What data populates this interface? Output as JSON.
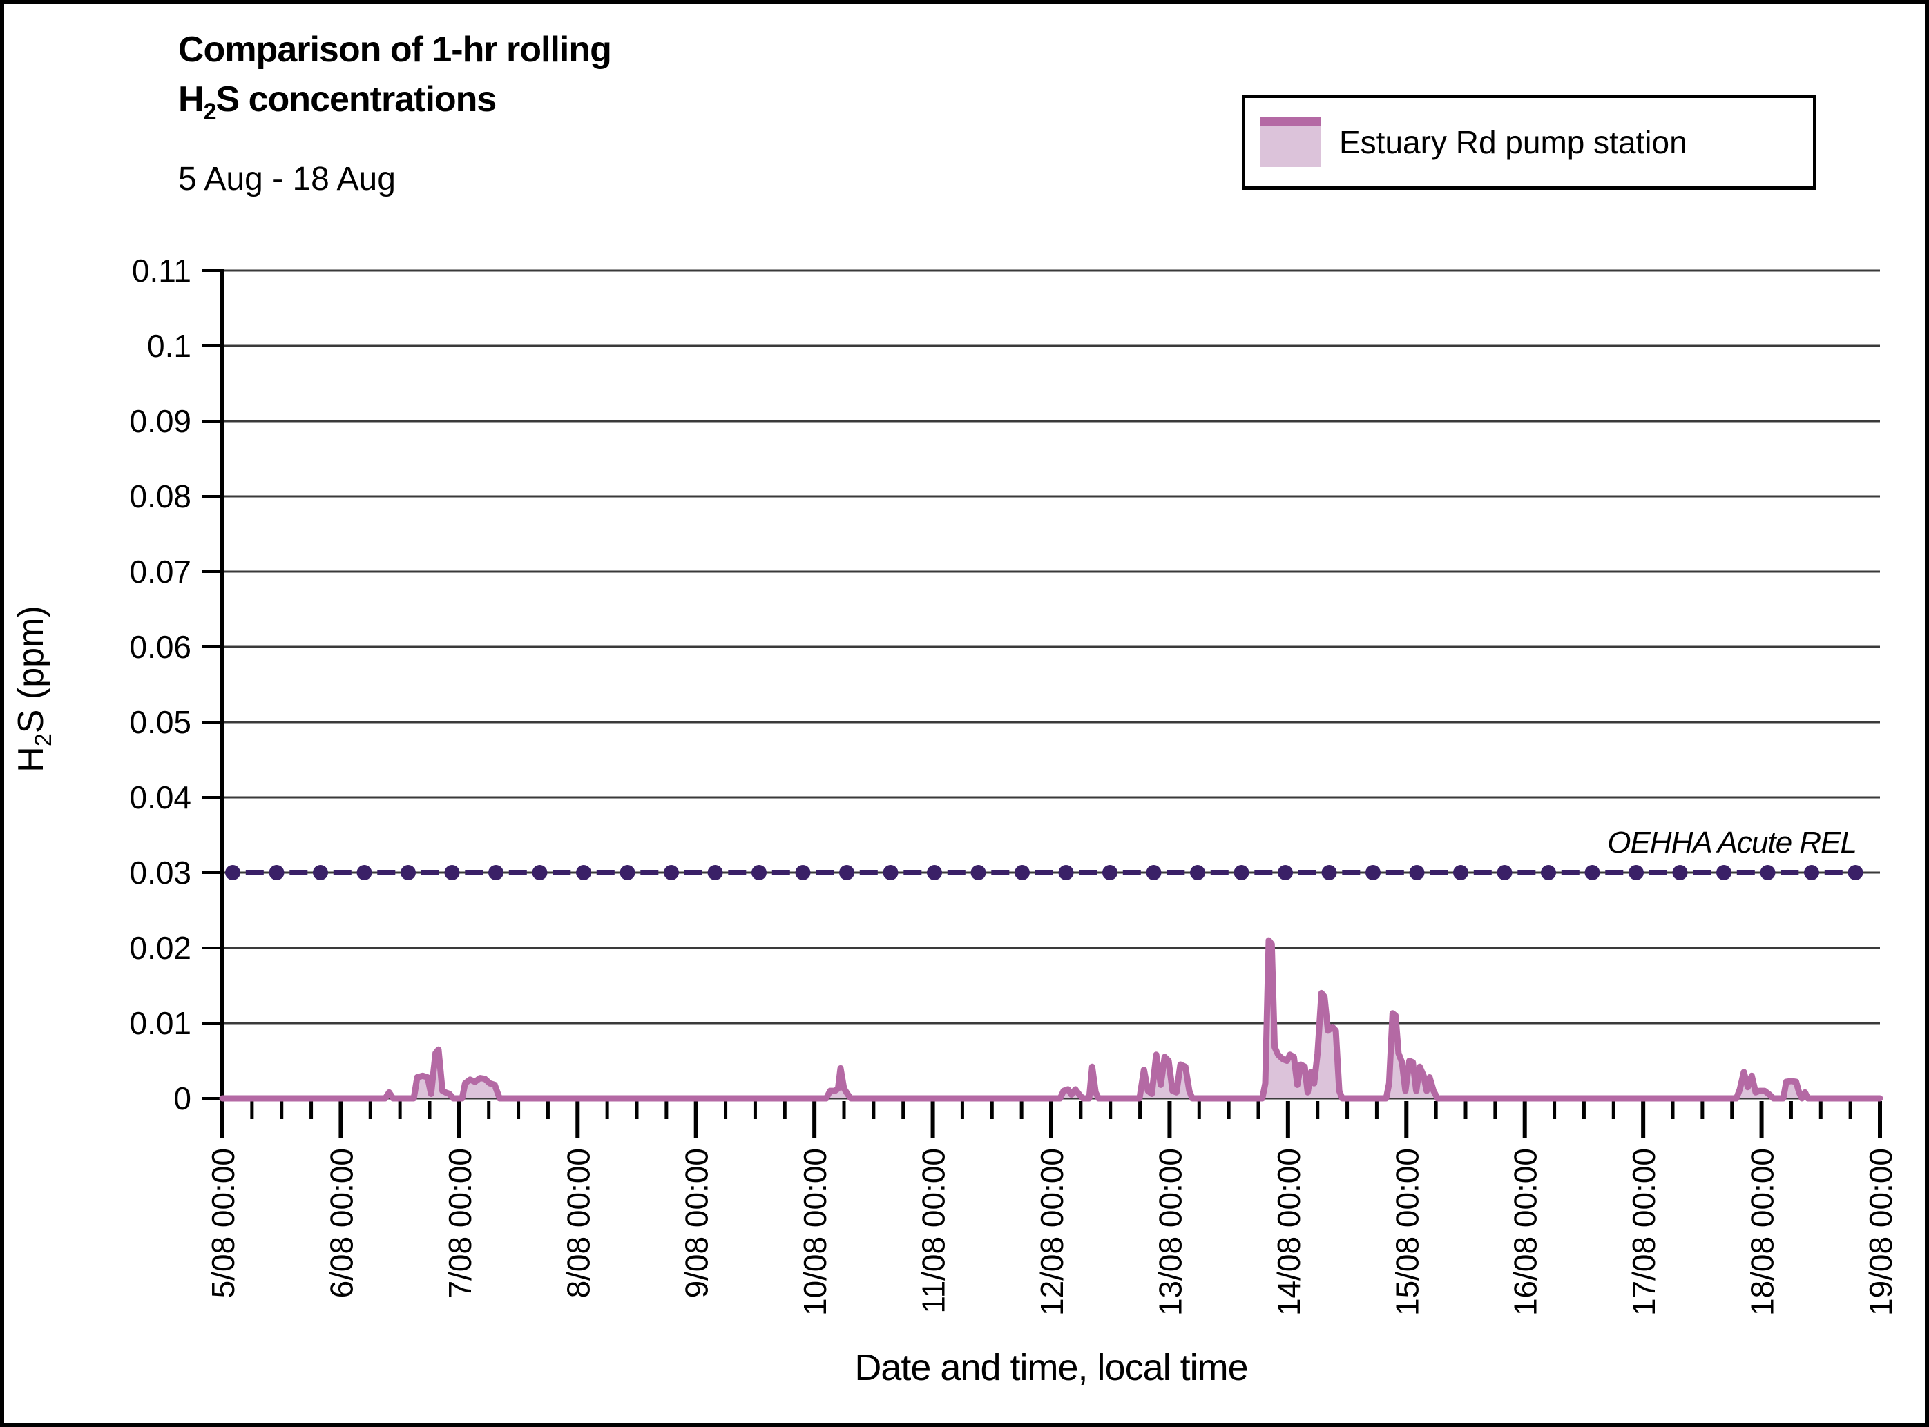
{
  "title": {
    "line1": "Comparison of 1-hr rolling",
    "line2_prefix": "H",
    "line2_sub": "2",
    "line2_suffix": "S concentrations"
  },
  "subtitle": "5 Aug - 18 Aug",
  "legend": {
    "label": "Estuary Rd pump station"
  },
  "annotation": {
    "text": "OEHHA Acute REL"
  },
  "axes": {
    "y": {
      "label_prefix": "H",
      "label_sub": "2",
      "label_suffix": "S (ppm)",
      "ticks": [
        "0",
        "0.01",
        "0.02",
        "0.03",
        "0.04",
        "0.05",
        "0.06",
        "0.07",
        "0.08",
        "0.09",
        "0.1",
        "0.11"
      ]
    },
    "x": {
      "label": "Date and time, local time",
      "ticks": [
        "5/08 00:00",
        "6/08 00:00",
        "7/08 00:00",
        "8/08 00:00",
        "9/08 00:00",
        "10/08 00:00",
        "11/08 00:00",
        "12/08 00:00",
        "13/08 00:00",
        "14/08 00:00",
        "15/08 00:00",
        "16/08 00:00",
        "17/08 00:00",
        "18/08 00:00",
        "19/08 00:00"
      ]
    }
  },
  "colors": {
    "series_line": "#b469a4",
    "series_fill": "#dcc3da",
    "rel_purple": "#3a2067",
    "gridline": "#3a3a3a",
    "axis": "#000000"
  },
  "chart_data": {
    "type": "area",
    "title": "Comparison of 1-hr rolling H2S concentrations",
    "subtitle": "5 Aug - 18 Aug",
    "xlabel": "Date and time, local time",
    "ylabel": "H2S (ppm)",
    "x_unit": "hours since 5/08 00:00",
    "x_range": [
      0,
      336
    ],
    "x_major_tick_hours": 24,
    "x_minor_tick_hours": 6,
    "ylim": [
      0,
      0.11
    ],
    "ytick_step": 0.01,
    "grid": "horizontal",
    "legend_position": "top-right",
    "series": [
      {
        "name": "Estuary Rd pump station",
        "type": "area",
        "color": "#b469a4",
        "fill": "#dcc3da",
        "points": [
          [
            0,
            0
          ],
          [
            33,
            0
          ],
          [
            33.8,
            0.0008
          ],
          [
            34.6,
            0
          ],
          [
            38.8,
            0
          ],
          [
            39.5,
            0.0028
          ],
          [
            40.6,
            0.003
          ],
          [
            41.6,
            0.0028
          ],
          [
            42.3,
            0.0006
          ],
          [
            43.2,
            0.006
          ],
          [
            43.8,
            0.0065
          ],
          [
            44.6,
            0.001
          ],
          [
            45.2,
            0.0008
          ],
          [
            46,
            0.0006
          ],
          [
            46.8,
            0
          ],
          [
            48.6,
            0
          ],
          [
            49.2,
            0.002
          ],
          [
            50.2,
            0.0025
          ],
          [
            51.2,
            0.0022
          ],
          [
            52.2,
            0.0027
          ],
          [
            53.2,
            0.0026
          ],
          [
            54.2,
            0.002
          ],
          [
            55.2,
            0.0018
          ],
          [
            56.2,
            0
          ],
          [
            122.4,
            0
          ],
          [
            123.2,
            0.001
          ],
          [
            124.2,
            0.001
          ],
          [
            124.8,
            0.0013
          ],
          [
            125.3,
            0.004
          ],
          [
            126,
            0.0013
          ],
          [
            126.8,
            0.0005
          ],
          [
            127.4,
            0
          ],
          [
            169.8,
            0
          ],
          [
            170.5,
            0.001
          ],
          [
            171.4,
            0.0012
          ],
          [
            172.1,
            0.0005
          ],
          [
            172.9,
            0.0012
          ],
          [
            173.7,
            0.0005
          ],
          [
            174.4,
            0
          ],
          [
            175.7,
            0
          ],
          [
            176.3,
            0.0042
          ],
          [
            177,
            0.0008
          ],
          [
            177.6,
            0
          ],
          [
            185.9,
            0
          ],
          [
            186.8,
            0.0038
          ],
          [
            187.6,
            0.001
          ],
          [
            188.4,
            0.0006
          ],
          [
            189.3,
            0.0058
          ],
          [
            190.2,
            0.0018
          ],
          [
            191,
            0.0055
          ],
          [
            191.8,
            0.005
          ],
          [
            192.6,
            0.001
          ],
          [
            193.4,
            0.0008
          ],
          [
            194.2,
            0.0045
          ],
          [
            195.2,
            0.0042
          ],
          [
            196,
            0.001
          ],
          [
            196.6,
            0
          ],
          [
            210.8,
            0
          ],
          [
            211.4,
            0.002
          ],
          [
            212.1,
            0.021
          ],
          [
            212.7,
            0.0205
          ],
          [
            213.3,
            0.0068
          ],
          [
            214,
            0.0058
          ],
          [
            215,
            0.0052
          ],
          [
            215.8,
            0.005
          ],
          [
            216.4,
            0.0058
          ],
          [
            217.2,
            0.0055
          ],
          [
            217.9,
            0.0018
          ],
          [
            218.6,
            0.0045
          ],
          [
            219.4,
            0.0042
          ],
          [
            220,
            0.0008
          ],
          [
            220.7,
            0.0035
          ],
          [
            221.3,
            0.002
          ],
          [
            222,
            0.006
          ],
          [
            222.8,
            0.014
          ],
          [
            223.4,
            0.0135
          ],
          [
            224.1,
            0.009
          ],
          [
            225,
            0.0095
          ],
          [
            225.7,
            0.009
          ],
          [
            226.4,
            0.001
          ],
          [
            227,
            0
          ],
          [
            235.9,
            0
          ],
          [
            236.5,
            0.002
          ],
          [
            237.2,
            0.0113
          ],
          [
            237.8,
            0.011
          ],
          [
            238.4,
            0.006
          ],
          [
            239.1,
            0.0048
          ],
          [
            239.8,
            0.001
          ],
          [
            240.6,
            0.005
          ],
          [
            241.3,
            0.0048
          ],
          [
            242,
            0.001
          ],
          [
            242.7,
            0.0042
          ],
          [
            243.5,
            0.003
          ],
          [
            244.1,
            0.001
          ],
          [
            244.7,
            0.0028
          ],
          [
            245.5,
            0.001
          ],
          [
            246.3,
            0
          ],
          [
            306.9,
            0
          ],
          [
            307.6,
            0.0012
          ],
          [
            308.4,
            0.0035
          ],
          [
            309.2,
            0.0015
          ],
          [
            310,
            0.003
          ],
          [
            310.8,
            0.0008
          ],
          [
            311.6,
            0.001
          ],
          [
            312.6,
            0.001
          ],
          [
            313.6,
            0.0005
          ],
          [
            314.4,
            0
          ],
          [
            316.4,
            0
          ],
          [
            317,
            0.0022
          ],
          [
            318,
            0.0023
          ],
          [
            319,
            0.0022
          ],
          [
            319.6,
            0.0008
          ],
          [
            320.2,
            0
          ],
          [
            320.8,
            0.0008
          ],
          [
            321.4,
            0
          ],
          [
            336,
            0
          ]
        ]
      },
      {
        "name": "OEHHA Acute REL",
        "type": "horizontal-reference-line",
        "style": "dashed-with-round-markers",
        "color": "#3a2067",
        "value": 0.03
      }
    ]
  }
}
